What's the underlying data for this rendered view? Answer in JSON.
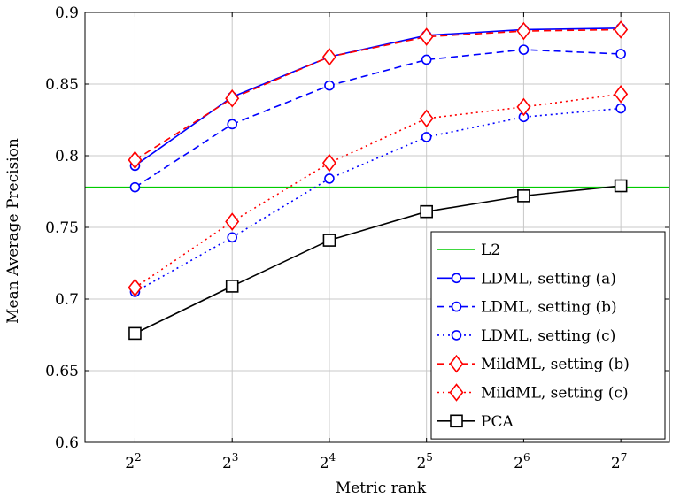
{
  "chart_data": {
    "type": "line",
    "title": "",
    "xlabel": "Metric rank",
    "ylabel": "Mean Average Precision",
    "x_ticks": [
      {
        "base": "2",
        "exp": "2"
      },
      {
        "base": "2",
        "exp": "3"
      },
      {
        "base": "2",
        "exp": "4"
      },
      {
        "base": "2",
        "exp": "5"
      },
      {
        "base": "2",
        "exp": "6"
      },
      {
        "base": "2",
        "exp": "7"
      }
    ],
    "x": [
      4,
      8,
      16,
      32,
      64,
      128
    ],
    "x_scale": "log2",
    "xlim": [
      2.8,
      181
    ],
    "ylim": [
      0.6,
      0.9
    ],
    "y_ticks": [
      "0.6",
      "0.65",
      "0.7",
      "0.75",
      "0.8",
      "0.85",
      "0.9"
    ],
    "grid": true,
    "legend_position": "bottom-right",
    "hlines": [
      {
        "name": "L2",
        "y": 0.778,
        "color": "#00cc00",
        "style": "solid"
      }
    ],
    "series": [
      {
        "name": "LDML, setting (a)",
        "values": [
          0.793,
          0.841,
          0.869,
          0.884,
          0.888,
          0.889
        ],
        "color": "#0000ff",
        "style": "solid",
        "marker": "circle"
      },
      {
        "name": "LDML, setting (b)",
        "values": [
          0.778,
          0.822,
          0.849,
          0.867,
          0.874,
          0.871
        ],
        "color": "#0000ff",
        "style": "dashed",
        "marker": "circle"
      },
      {
        "name": "LDML, setting (c)",
        "values": [
          0.705,
          0.743,
          0.784,
          0.813,
          0.827,
          0.833
        ],
        "color": "#0000ff",
        "style": "dotted",
        "marker": "circle"
      },
      {
        "name": "MildML, setting (b)",
        "values": [
          0.797,
          0.84,
          0.869,
          0.883,
          0.887,
          0.888
        ],
        "color": "#ff0000",
        "style": "dashed",
        "marker": "diamond"
      },
      {
        "name": "MildML, setting (c)",
        "values": [
          0.708,
          0.754,
          0.795,
          0.826,
          0.834,
          0.843
        ],
        "color": "#ff0000",
        "style": "dotted",
        "marker": "diamond"
      },
      {
        "name": "PCA",
        "values": [
          0.676,
          0.709,
          0.741,
          0.761,
          0.772,
          0.779
        ],
        "color": "#000000",
        "style": "solid",
        "marker": "square"
      }
    ]
  }
}
